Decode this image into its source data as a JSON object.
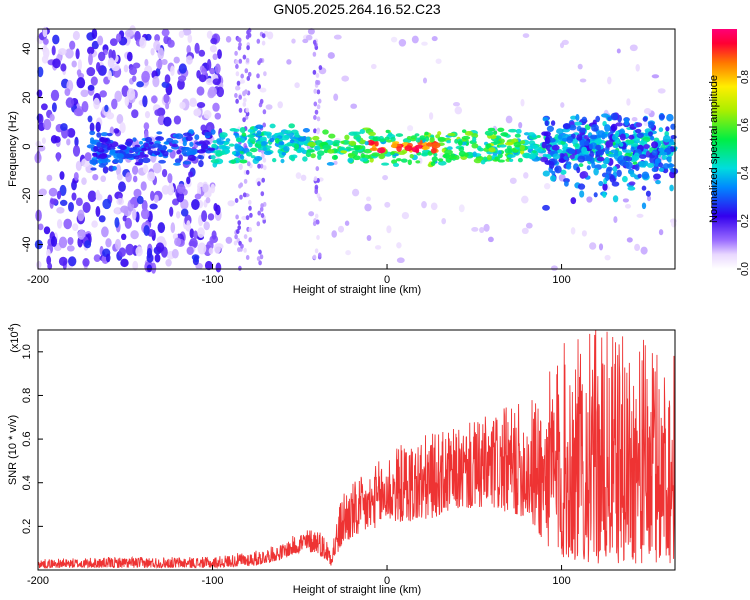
{
  "figure": {
    "title": "GN05.2025.264.16.52.C23"
  },
  "chart_data": [
    {
      "type": "heatmap",
      "name": "spectrogram",
      "xlabel": "Height of straight line (km)",
      "ylabel": "Frequency (Hz)",
      "xlim": [
        -200,
        165
      ],
      "ylim": [
        -50,
        48
      ],
      "xticks": [
        -200,
        -100,
        0,
        100
      ],
      "yticks": [
        -40,
        -20,
        0,
        20,
        40
      ],
      "colorbar": {
        "label": "Normalized spectral amplitude",
        "range": [
          0,
          1
        ],
        "ticks": [
          "0.0",
          "0.2",
          "0.4",
          "0.6",
          "0.8"
        ],
        "tick_values": [
          0,
          0.2,
          0.4,
          0.6,
          0.8
        ]
      },
      "features": [
        {
          "label": "central signal band",
          "x_range": [
            -170,
            165
          ],
          "freq_center": 0,
          "freq_halfwidth": 5,
          "peak_amplitude": 1.0,
          "peak_x_range": [
            -10,
            30
          ]
        },
        {
          "label": "broadband noise",
          "x_range": [
            -200,
            -95
          ],
          "freq_range": [
            -50,
            48
          ]
        },
        {
          "label": "spike",
          "x": -40,
          "freq_range": [
            -50,
            48
          ]
        }
      ]
    },
    {
      "type": "line",
      "name": "snr",
      "xlabel": "Height of straight line (km)",
      "ylabel": "SNR (10 * v/v)",
      "scale_label": "(x10",
      "scale_exp": "4",
      "scale_close": ")",
      "xlim": [
        -200,
        165
      ],
      "ylim": [
        0,
        1.1
      ],
      "xticks": [
        -200,
        -100,
        0,
        100
      ],
      "yticks": [
        0.2,
        0.4,
        0.6,
        0.8,
        1.0
      ],
      "ytick_labels": [
        "0.2",
        "0.4",
        "0.6",
        "0.8",
        "1.0"
      ],
      "color": "#ee3333",
      "envelope": {
        "x": [
          -200,
          -150,
          -100,
          -75,
          -60,
          -50,
          -40,
          -32,
          -25,
          -10,
          0,
          20,
          40,
          60,
          80,
          90,
          100,
          120,
          140,
          165
        ],
        "low": [
          0.01,
          0.01,
          0.01,
          0.02,
          0.05,
          0.08,
          0.08,
          0.02,
          0.12,
          0.18,
          0.22,
          0.22,
          0.28,
          0.28,
          0.24,
          0.12,
          0.05,
          0.03,
          0.03,
          0.03
        ],
        "high": [
          0.05,
          0.06,
          0.06,
          0.09,
          0.12,
          0.18,
          0.2,
          0.12,
          0.38,
          0.45,
          0.55,
          0.62,
          0.65,
          0.72,
          0.78,
          0.85,
          1.05,
          1.1,
          1.08,
          1.0
        ]
      }
    }
  ]
}
